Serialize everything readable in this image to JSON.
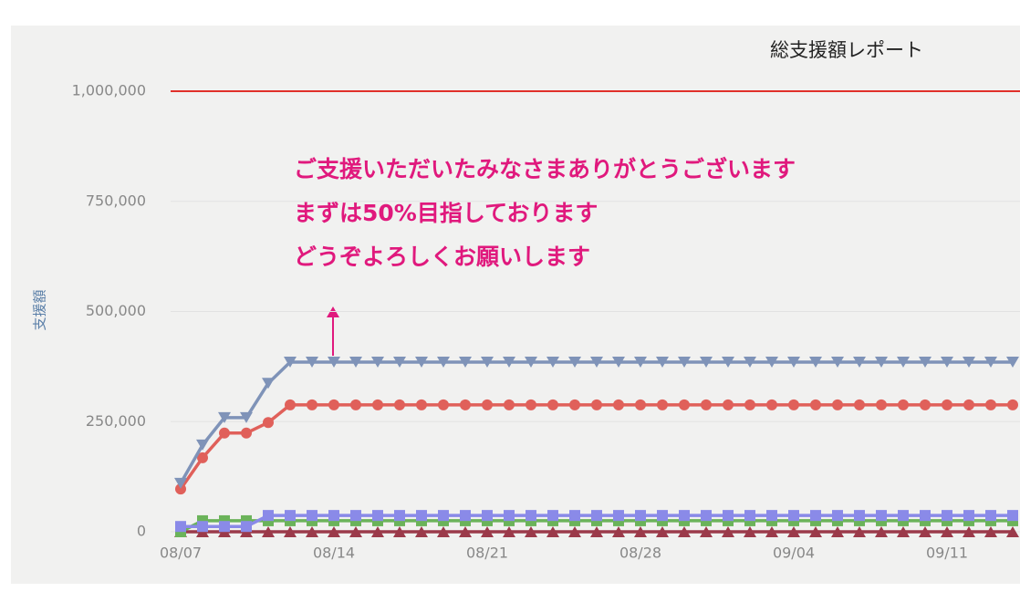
{
  "chart_data": {
    "type": "line",
    "title": "総支援額レポート",
    "y_axis_label": "支援額",
    "annotation": [
      "ご支援いただいたみなさまありがとうございます",
      "まずは50%目指しております",
      "どうぞよろしくお願いします"
    ],
    "target_line": {
      "value": 1000000,
      "color": "#e0302a"
    },
    "categories": [
      "08/07",
      null,
      null,
      null,
      null,
      null,
      null,
      "08/14",
      null,
      null,
      null,
      null,
      null,
      null,
      "08/21",
      null,
      null,
      null,
      null,
      null,
      null,
      "08/28",
      null,
      null,
      null,
      null,
      null,
      null,
      "09/04",
      null,
      null,
      null,
      null,
      null,
      null,
      "09/11",
      null,
      null,
      null
    ],
    "series": [
      {
        "color": "#9b3a4a",
        "marker": "triangle-up",
        "values": [
          0,
          0,
          0,
          0,
          0,
          0,
          0,
          0,
          0,
          0,
          0,
          0,
          0,
          0,
          0,
          0,
          0,
          0,
          0,
          0,
          0,
          0,
          0,
          0,
          0,
          0,
          0,
          0,
          0,
          0,
          0,
          0,
          0,
          0,
          0,
          0,
          0,
          0,
          0
        ]
      },
      {
        "color": "#6bb35a",
        "marker": "square",
        "values": [
          0,
          25000,
          25000,
          25000,
          25000,
          25000,
          25000,
          25000,
          25000,
          25000,
          25000,
          25000,
          25000,
          25000,
          25000,
          25000,
          25000,
          25000,
          25000,
          25000,
          25000,
          25000,
          25000,
          25000,
          25000,
          25000,
          25000,
          25000,
          25000,
          25000,
          25000,
          25000,
          25000,
          25000,
          25000,
          25000,
          25000,
          25000,
          25000
        ]
      },
      {
        "color": "#8a8ae8",
        "marker": "square",
        "values": [
          12000,
          12000,
          12000,
          12000,
          37000,
          37000,
          37000,
          37000,
          37000,
          37000,
          37000,
          37000,
          37000,
          37000,
          37000,
          37000,
          37000,
          37000,
          37000,
          37000,
          37000,
          37000,
          37000,
          37000,
          37000,
          37000,
          37000,
          37000,
          37000,
          37000,
          37000,
          37000,
          37000,
          37000,
          37000,
          37000,
          37000,
          37000,
          37000
        ]
      },
      {
        "color": "#e0605a",
        "marker": "circle",
        "values": [
          97000,
          168000,
          224000,
          224000,
          248000,
          288000,
          288000,
          288000,
          288000,
          288000,
          288000,
          288000,
          288000,
          288000,
          288000,
          288000,
          288000,
          288000,
          288000,
          288000,
          288000,
          288000,
          288000,
          288000,
          288000,
          288000,
          288000,
          288000,
          288000,
          288000,
          288000,
          288000,
          288000,
          288000,
          288000,
          288000,
          288000,
          288000,
          288000
        ]
      },
      {
        "color": "#7f93b8",
        "marker": "triangle-down",
        "values": [
          110000,
          197000,
          259000,
          259000,
          337000,
          385000,
          385000,
          385000,
          385000,
          385000,
          385000,
          385000,
          385000,
          385000,
          385000,
          385000,
          385000,
          385000,
          385000,
          385000,
          385000,
          385000,
          385000,
          385000,
          385000,
          385000,
          385000,
          385000,
          385000,
          385000,
          385000,
          385000,
          385000,
          385000,
          385000,
          385000,
          385000,
          385000,
          385000
        ]
      }
    ],
    "ylim": [
      0,
      1000000
    ],
    "yticks": [
      0,
      {
        "value": 250000,
        "label": "250,000"
      },
      {
        "value": 500000,
        "label": "500,000"
      },
      {
        "value": 750000,
        "label": "750,000"
      },
      {
        "value": 1000000,
        "label": "1,000,000"
      }
    ],
    "grid": true
  }
}
